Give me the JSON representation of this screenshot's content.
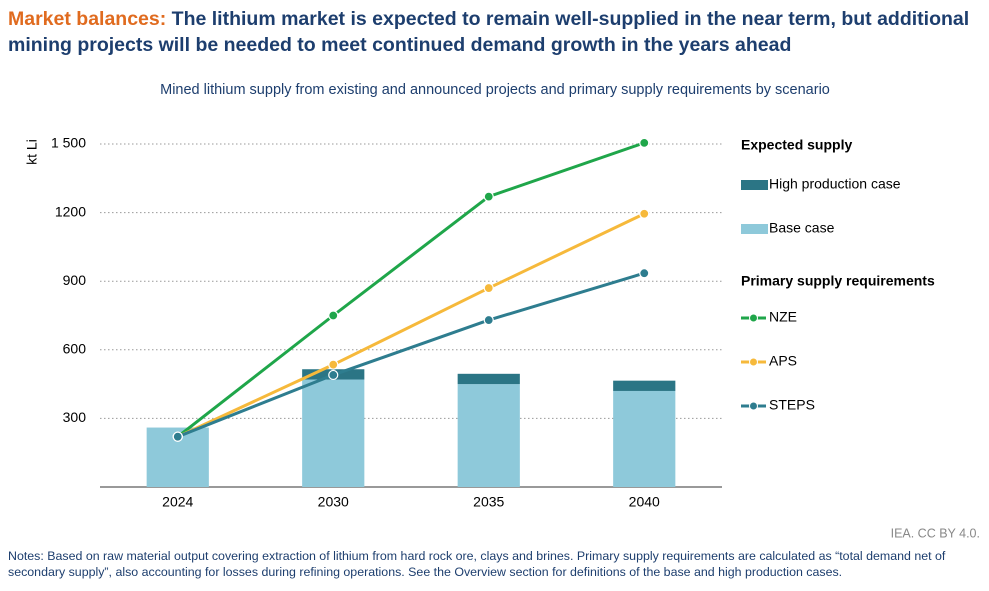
{
  "chart_data": {
    "type": "bar",
    "title_lead": "Market balances:",
    "title": "The lithium market is expected to remain well-supplied in the near term, but additional mining projects will be needed to meet continued demand growth in the years ahead",
    "subtitle": "Mined lithium supply from existing and announced projects and primary supply requirements by scenario",
    "y_label": "kt Li",
    "source": "IEA. CC BY 4.0.",
    "notes": "Notes: Based on raw material output covering extraction of lithium from hard rock ore, clays and brines. Primary supply requirements are calculated as “total demand net of secondary supply”, also accounting for losses during refining operations. See the Overview section for definitions of the base and high production cases.",
    "legend_titles": [
      "Expected supply",
      "Primary supply requirements"
    ],
    "categories": [
      "2024",
      "2030",
      "2035",
      "2040"
    ],
    "series": [
      {
        "name": "High production case",
        "type": "bar",
        "color": "#2b7585",
        "values": [
          null,
          45,
          45,
          45
        ]
      },
      {
        "name": "Base case",
        "type": "bar",
        "color": "#8ec9da",
        "values": [
          260,
          470,
          450,
          420
        ]
      },
      {
        "name": "NZE",
        "type": "line",
        "color": "#1fa64a",
        "values": [
          220,
          750,
          1270,
          1505
        ]
      },
      {
        "name": "APS",
        "type": "line",
        "color": "#f6b93b",
        "values": [
          220,
          535,
          870,
          1195
        ]
      },
      {
        "name": "STEPS",
        "type": "line",
        "color": "#2e7d8f",
        "values": [
          220,
          490,
          730,
          935
        ]
      }
    ],
    "ylim": [
      0,
      1500
    ],
    "yticks": [
      300,
      600,
      900,
      1200,
      {
        "value": 1500,
        "label": "1 500"
      }
    ],
    "grid": true
  }
}
